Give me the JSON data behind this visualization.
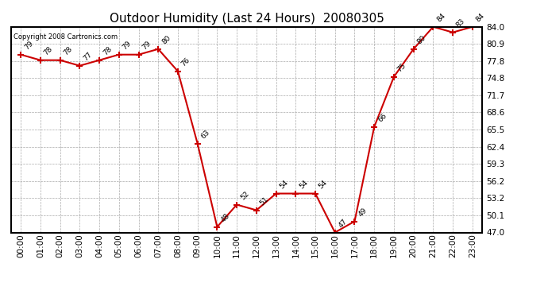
{
  "title": "Outdoor Humidity (Last 24 Hours)  20080305",
  "copyright": "Copyright 2008 Cartronics.com",
  "x_labels": [
    "00:00",
    "01:00",
    "02:00",
    "03:00",
    "04:00",
    "05:00",
    "06:00",
    "07:00",
    "08:00",
    "09:00",
    "10:00",
    "11:00",
    "12:00",
    "13:00",
    "14:00",
    "15:00",
    "16:00",
    "17:00",
    "18:00",
    "19:00",
    "20:00",
    "21:00",
    "22:00",
    "23:00"
  ],
  "x_values": [
    0,
    1,
    2,
    3,
    4,
    5,
    6,
    7,
    8,
    9,
    10,
    11,
    12,
    13,
    14,
    15,
    16,
    17,
    18,
    19,
    20,
    21,
    22,
    23
  ],
  "y_values": [
    79,
    78,
    78,
    77,
    78,
    79,
    79,
    80,
    76,
    63,
    48,
    52,
    51,
    54,
    54,
    54,
    47,
    49,
    66,
    75,
    80,
    84,
    83,
    84
  ],
  "y_labels": [
    47.0,
    50.1,
    53.2,
    56.2,
    59.3,
    62.4,
    65.5,
    68.6,
    71.7,
    74.8,
    77.8,
    80.9,
    84.0
  ],
  "ylim": [
    47.0,
    84.0
  ],
  "line_color": "#cc0000",
  "marker_color": "#cc0000",
  "bg_color": "#ffffff",
  "grid_color": "#aaaaaa",
  "title_fontsize": 11,
  "label_fontsize": 7.5,
  "annot_fontsize": 6.5
}
